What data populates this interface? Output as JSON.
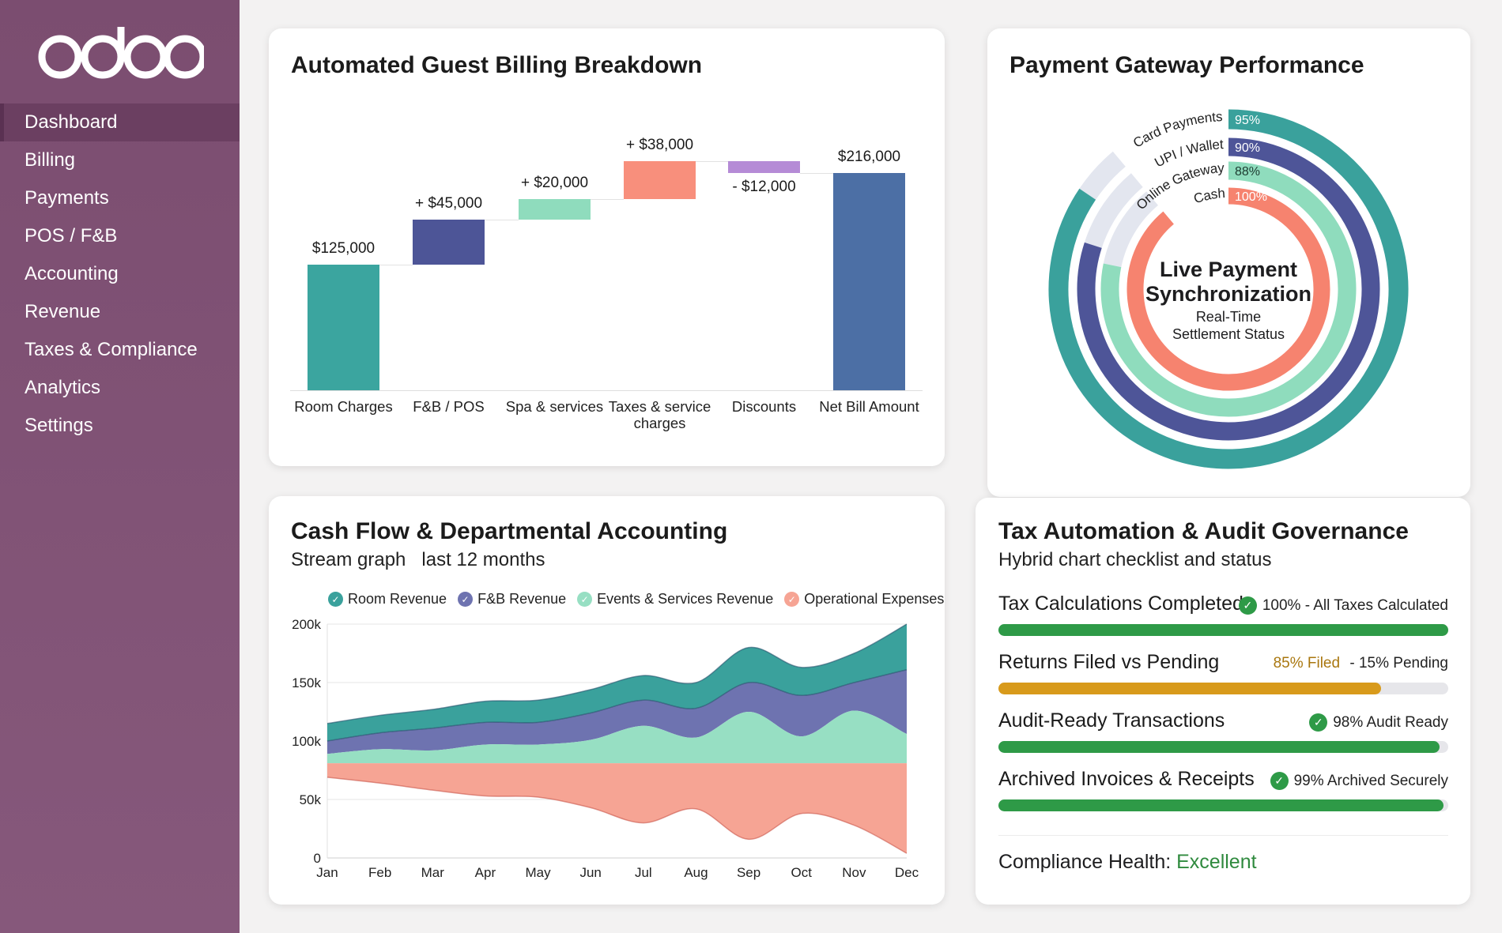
{
  "brand": "odoo",
  "sidebar": {
    "items": [
      {
        "label": "Dashboard",
        "active": true
      },
      {
        "label": "Billing"
      },
      {
        "label": "Payments"
      },
      {
        "label": "POS / F&B"
      },
      {
        "label": "Accounting"
      },
      {
        "label": "Revenue"
      },
      {
        "label": "Taxes & Compliance"
      },
      {
        "label": "Analytics"
      },
      {
        "label": "Settings"
      }
    ]
  },
  "billing": {
    "title": "Automated Guest Billing Breakdown",
    "chart_data": {
      "type": "waterfall",
      "categories": [
        "Room Charges",
        "F&B / POS",
        "Spa & services",
        "Taxes & service charges",
        "Discounts",
        "Net Bill Amount"
      ],
      "values": [
        125000,
        45000,
        20000,
        38000,
        -12000,
        216000
      ],
      "kinds": [
        "total",
        "increase",
        "increase",
        "increase",
        "decrease",
        "total"
      ],
      "labels": [
        "$125,000",
        "+ $45,000",
        "+ $20,000",
        "+ $38,000",
        "- $12,000",
        "$216,000"
      ],
      "colors": [
        "#3ba59f",
        "#4d5597",
        "#8fdcbd",
        "#f88f7c",
        "#b58bd6",
        "#4c6fa5"
      ]
    }
  },
  "gateway": {
    "title": "Payment Gateway Performance",
    "center_title_1": "Live Payment",
    "center_title_2": "Synchronization",
    "center_sub_1": "Real-Time",
    "center_sub_2": "Settlement Status",
    "chart_data": {
      "type": "radial-bar",
      "series": [
        {
          "name": "Card Payments",
          "value": 95,
          "label": "95%",
          "color": "#3aa19c"
        },
        {
          "name": "UPI / Wallet",
          "value": 90,
          "label": "90%",
          "color": "#4e5598"
        },
        {
          "name": "Online Gateway",
          "value": 88,
          "label": "88%",
          "color": "#8fdcbd"
        },
        {
          "name": "Cash",
          "value": 100,
          "label": "100%",
          "color": "#f6836f"
        }
      ]
    }
  },
  "cashflow": {
    "title": "Cash Flow & Departmental Accounting",
    "subtitle": "Stream graph   last 12 months",
    "chart_data": {
      "type": "area",
      "stacked": "stream",
      "categories": [
        "Jan",
        "Feb",
        "Mar",
        "Apr",
        "May",
        "Jun",
        "Jul",
        "Aug",
        "Sep",
        "Oct",
        "Nov",
        "Dec"
      ],
      "ylim": [
        0,
        200000
      ],
      "yticks": [
        "0",
        "50k",
        "100k",
        "150k",
        "200k"
      ],
      "grid": true,
      "legend": "top",
      "stream_baseline": 81000,
      "series": [
        {
          "name": "Room Revenue",
          "color": "#3aa19c",
          "values": [
            15000,
            15000,
            16000,
            18000,
            19000,
            20000,
            21000,
            22000,
            30000,
            24000,
            25000,
            39000
          ]
        },
        {
          "name": "F&B Revenue",
          "color": "#6e73b0",
          "values": [
            11000,
            14000,
            19000,
            19000,
            19000,
            23000,
            22000,
            25000,
            25000,
            35000,
            24000,
            55000
          ]
        },
        {
          "name": "Events & Services Revenue",
          "color": "#97dfc3",
          "values": [
            8000,
            12000,
            11000,
            16000,
            16000,
            20000,
            32000,
            22000,
            44000,
            23000,
            45000,
            25000
          ]
        },
        {
          "name": "Operational Expenses",
          "color": "#f6a494",
          "values": [
            12000,
            17000,
            23000,
            28000,
            29000,
            38000,
            51000,
            39000,
            65000,
            43000,
            53000,
            77000
          ]
        }
      ]
    }
  },
  "tax": {
    "title": "Tax Automation & Audit Governance",
    "subtitle": "Hybrid chart checklist and status",
    "rows": [
      {
        "label": "Tax Calculations Completed",
        "status": "100% - All Taxes Calculated",
        "progress": 100,
        "color": "#2e9a47",
        "check": true
      },
      {
        "label": "Returns Filed vs Pending",
        "status_a": "85% Filed",
        "status_b": " - 15% Pending",
        "progress": 85,
        "color": "#d89a1b",
        "check": false
      },
      {
        "label": "Audit-Ready Transactions",
        "status": "98% Audit Ready",
        "progress": 98,
        "color": "#2e9a47",
        "check": true
      },
      {
        "label": "Archived Invoices & Receipts",
        "status": "99% Archived Securely",
        "progress": 99,
        "color": "#2e9a47",
        "check": true
      }
    ],
    "health_label": "Compliance Health:",
    "health_value": "Excellent"
  }
}
